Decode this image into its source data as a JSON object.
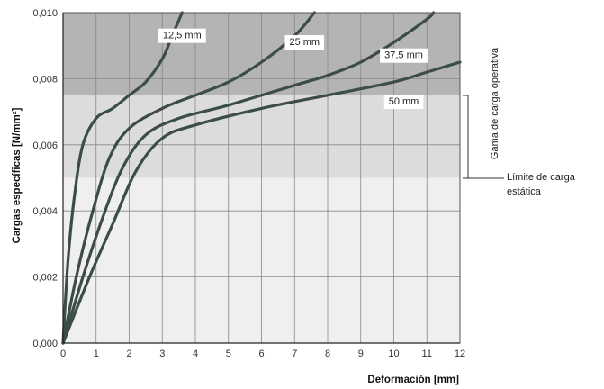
{
  "chart_data": {
    "type": "line",
    "xlabel": "Deformación [mm]",
    "ylabel": "Cargas específicas [N/mm²]",
    "xlim": [
      0,
      12
    ],
    "ylim": [
      0,
      0.01
    ],
    "x_ticks": [
      "0",
      "1",
      "2",
      "3",
      "4",
      "5",
      "6",
      "7",
      "8",
      "9",
      "10",
      "11",
      "12"
    ],
    "y_ticks": [
      "0,000",
      "0,002",
      "0,004",
      "0,006",
      "0,008",
      "0,010"
    ],
    "grid": true,
    "bands": [
      {
        "name": "static",
        "from": 0,
        "to": 0.005,
        "color": "#efefef"
      },
      {
        "name": "operating",
        "from": 0.005,
        "to": 0.0075,
        "color": "#dcdcdc"
      },
      {
        "name": "over",
        "from": 0.0075,
        "to": 0.01,
        "color": "#b4b4b4"
      }
    ],
    "annotations": {
      "operating_range": "Gama de carga operativa",
      "static_limit_line1": "Límite de carga",
      "static_limit_line2": "estática"
    },
    "series": [
      {
        "name": "12,5 mm",
        "points": [
          [
            0,
            0
          ],
          [
            0.15,
            0.0025
          ],
          [
            0.35,
            0.0045
          ],
          [
            0.6,
            0.006
          ],
          [
            1,
            0.0068
          ],
          [
            1.5,
            0.0071
          ],
          [
            2,
            0.0075
          ],
          [
            2.5,
            0.0079
          ],
          [
            3,
            0.0086
          ],
          [
            3.3,
            0.0093
          ],
          [
            3.6,
            0.01
          ]
        ]
      },
      {
        "name": "25 mm",
        "points": [
          [
            0,
            0
          ],
          [
            0.4,
            0.002
          ],
          [
            0.9,
            0.004
          ],
          [
            1.4,
            0.0056
          ],
          [
            2,
            0.0065
          ],
          [
            3,
            0.0071
          ],
          [
            4,
            0.0075
          ],
          [
            5,
            0.0079
          ],
          [
            6,
            0.0085
          ],
          [
            7,
            0.0093
          ],
          [
            7.6,
            0.01
          ]
        ]
      },
      {
        "name": "37,5 mm",
        "points": [
          [
            0,
            0
          ],
          [
            0.6,
            0.002
          ],
          [
            1.2,
            0.0038
          ],
          [
            1.8,
            0.0053
          ],
          [
            2.5,
            0.0063
          ],
          [
            3.5,
            0.0068
          ],
          [
            5,
            0.0072
          ],
          [
            7,
            0.0078
          ],
          [
            8,
            0.0081
          ],
          [
            9,
            0.0085
          ],
          [
            10,
            0.0091
          ],
          [
            11,
            0.0098
          ],
          [
            11.2,
            0.01
          ]
        ]
      },
      {
        "name": "50 mm",
        "points": [
          [
            0,
            0
          ],
          [
            0.8,
            0.002
          ],
          [
            1.5,
            0.0036
          ],
          [
            2.2,
            0.0052
          ],
          [
            3,
            0.0062
          ],
          [
            4,
            0.0066
          ],
          [
            6,
            0.0071
          ],
          [
            8,
            0.0075
          ],
          [
            10,
            0.0079
          ],
          [
            11,
            0.0082
          ],
          [
            12,
            0.0085
          ]
        ]
      }
    ],
    "series_colors": [
      "#3b4d45",
      "#3b4d45",
      "#3b4d45",
      "#3b4d45"
    ],
    "grid_color": "#888888"
  }
}
